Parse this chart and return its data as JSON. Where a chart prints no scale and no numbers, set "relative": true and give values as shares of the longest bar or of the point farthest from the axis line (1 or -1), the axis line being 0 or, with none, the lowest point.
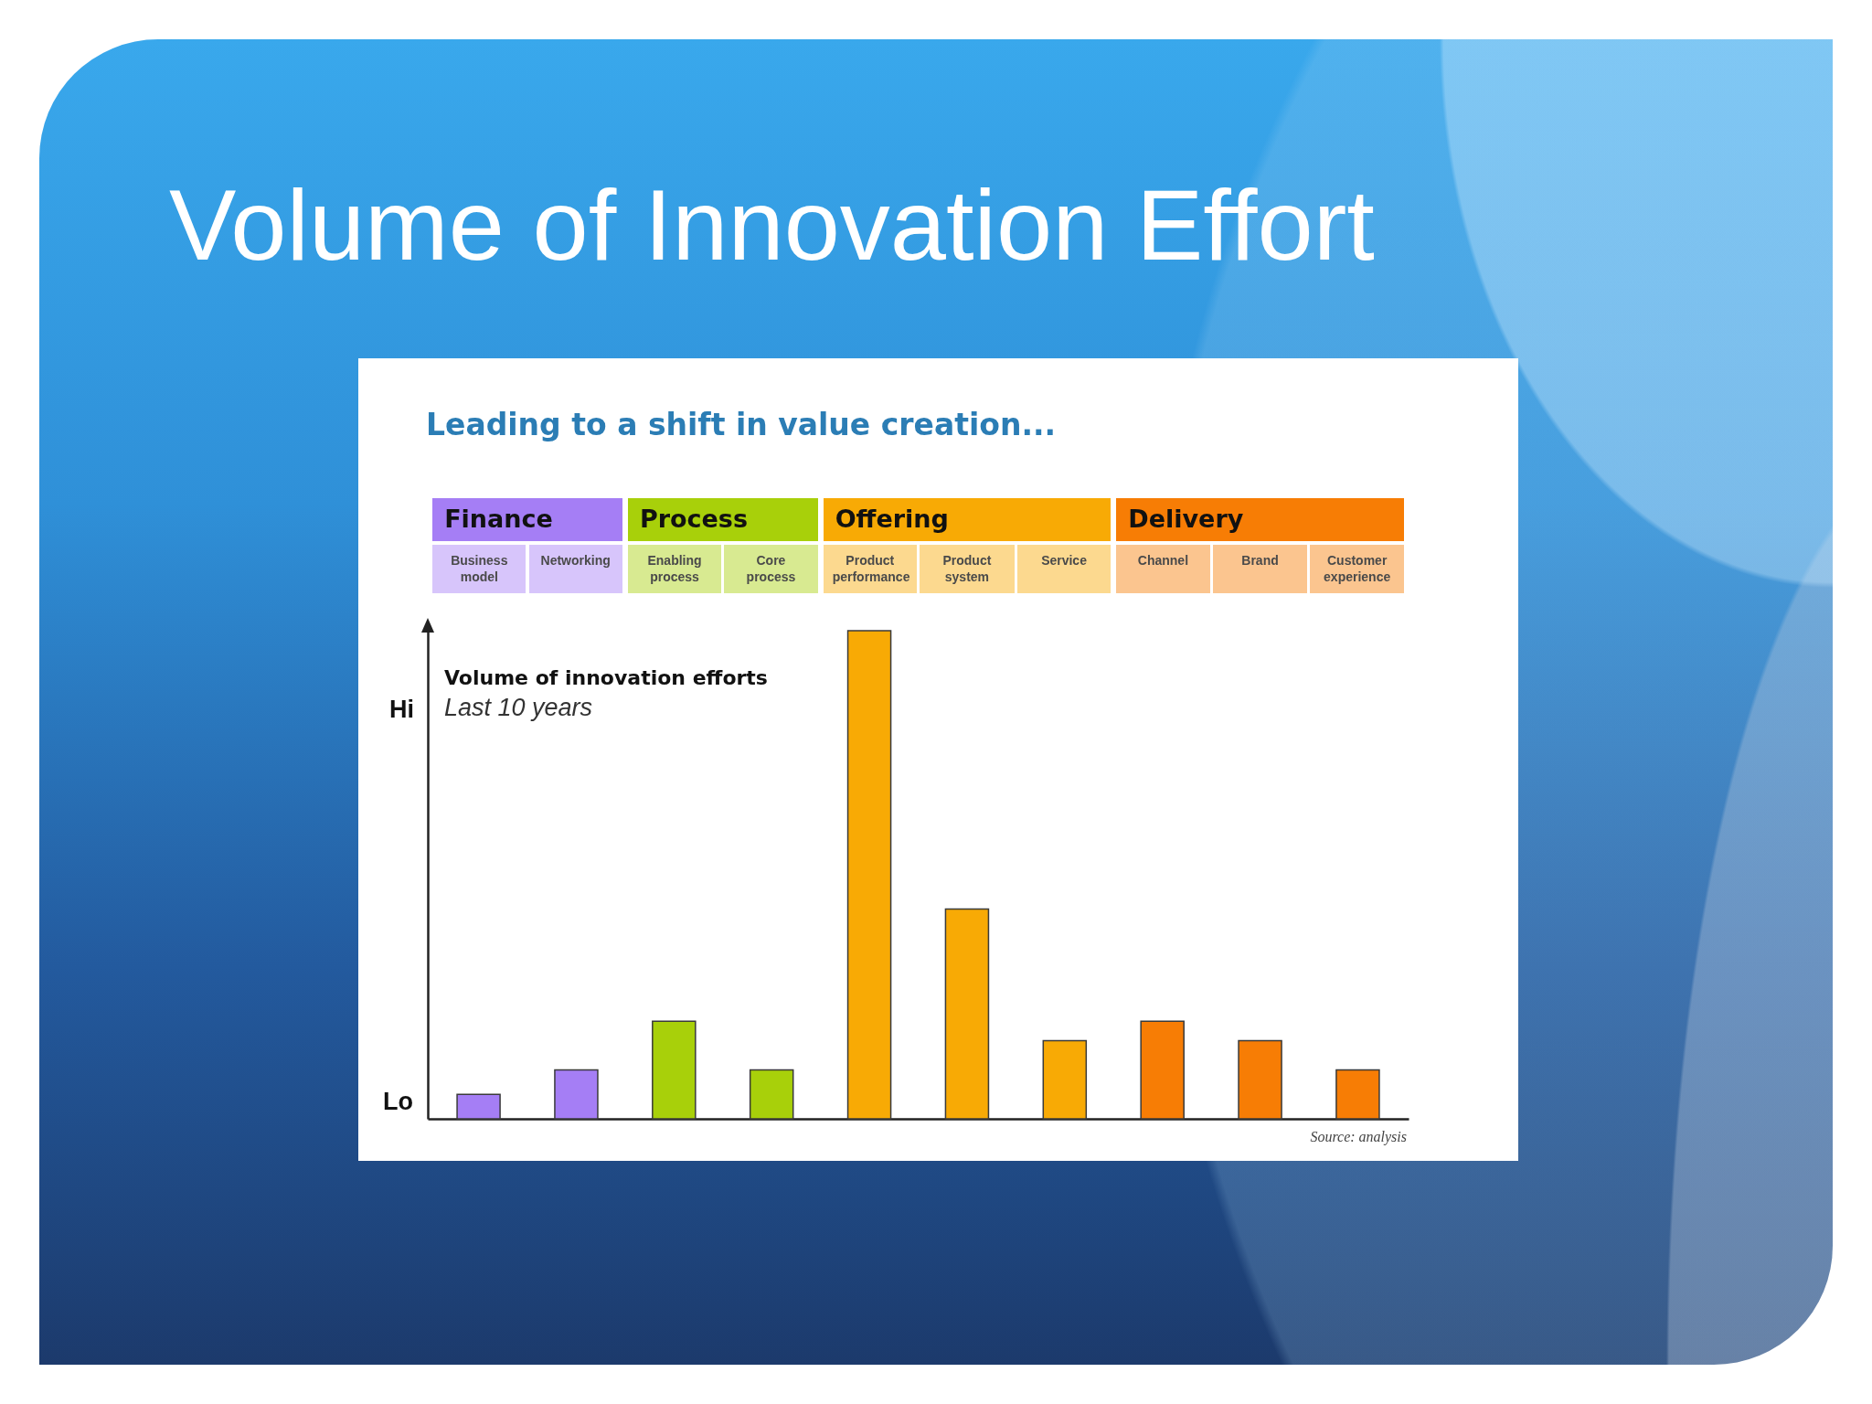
{
  "chart_data": {
    "type": "bar",
    "title": "Volume of Innovation Effort",
    "subtitle": "Leading to a shift in value creation...",
    "ylabel": "Volume of innovation efforts",
    "categories": [
      "Business model",
      "Networking",
      "Enabling process",
      "Core process",
      "Product performance",
      "Product system",
      "Service",
      "Channel",
      "Brand",
      "Customer experience"
    ],
    "relative": true,
    "series": [
      {
        "name": "Finance",
        "color": "#a57ef5",
        "values": [
          0.05,
          0.1,
          null,
          null,
          null,
          null,
          null,
          null,
          null,
          null
        ]
      },
      {
        "name": "Process",
        "color": "#a8d00a",
        "values": [
          null,
          null,
          0.2,
          0.1,
          null,
          null,
          null,
          null,
          null,
          null
        ]
      },
      {
        "name": "Offering",
        "color": "#f8aa05",
        "values": [
          null,
          null,
          null,
          null,
          1,
          0.43,
          0.16,
          null,
          null,
          null
        ]
      },
      {
        "name": "Delivery",
        "color": "#f77d05",
        "values": [
          null,
          null,
          null,
          null,
          null,
          null,
          null,
          0.2,
          0.16,
          0.1
        ]
      }
    ],
    "legend": "top",
    "annotations": [
      "Last 10 years",
      "Hi",
      "Lo",
      "Source: analysis"
    ]
  }
}
